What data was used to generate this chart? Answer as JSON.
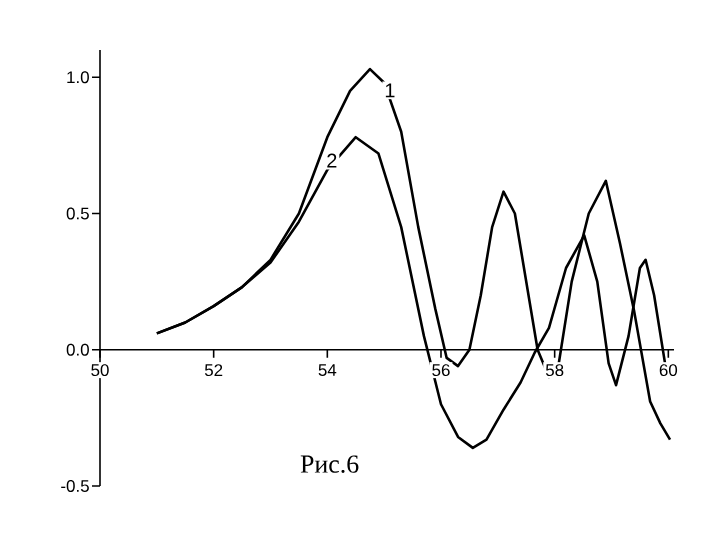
{
  "chart_data": {
    "type": "line",
    "annotations": [
      "Рис.6"
    ],
    "xlim": [
      50,
      60.1
    ],
    "ylim": [
      -0.5,
      1.1
    ],
    "xticks": [
      50,
      52,
      54,
      56,
      58,
      60
    ],
    "yticks": [
      {
        "value": -0.5,
        "label": "-0.5"
      },
      {
        "value": 0,
        "label": "0.0"
      },
      {
        "value": 0.5,
        "label": "0.5"
      },
      {
        "value": 1,
        "label": "1.0"
      }
    ],
    "grid": false,
    "legend": false,
    "marker": "none",
    "line_style": "solid",
    "series": [
      {
        "name": "1",
        "color": "#000000",
        "x": [
          51,
          51.5,
          52,
          52.5,
          53,
          53.5,
          54,
          54.4,
          54.75,
          55.0,
          55.3,
          55.6,
          55.9,
          56.1,
          56.3,
          56.5,
          56.7,
          56.9,
          57.1,
          57.3,
          57.5,
          57.7,
          57.9,
          58.05,
          58.3,
          58.6,
          58.9,
          59.15,
          59.4,
          59.68,
          59.86,
          60.03
        ],
        "values": [
          0.06,
          0.1,
          0.16,
          0.23,
          0.33,
          0.5,
          0.78,
          0.95,
          1.03,
          0.98,
          0.8,
          0.45,
          0.15,
          -0.03,
          -0.06,
          0.0,
          0.2,
          0.45,
          0.58,
          0.5,
          0.25,
          0.0,
          -0.1,
          -0.08,
          0.25,
          0.5,
          0.62,
          0.39,
          0.14,
          -0.19,
          -0.27,
          -0.33
        ]
      },
      {
        "name": "2",
        "color": "#000000",
        "x": [
          51,
          51.5,
          52,
          52.5,
          53,
          53.5,
          54,
          54.5,
          54.9,
          55.3,
          55.7,
          56.0,
          56.3,
          56.56,
          56.8,
          57.1,
          57.4,
          57.65,
          57.9,
          58.2,
          58.52,
          58.75,
          58.95,
          59.08,
          59.3,
          59.5,
          59.6,
          59.75,
          59.95
        ],
        "values": [
          0.06,
          0.1,
          0.16,
          0.23,
          0.32,
          0.47,
          0.66,
          0.78,
          0.72,
          0.45,
          0.05,
          -0.2,
          -0.32,
          -0.36,
          -0.33,
          -0.22,
          -0.12,
          -0.01,
          0.08,
          0.3,
          0.42,
          0.25,
          -0.05,
          -0.13,
          0.05,
          0.3,
          0.33,
          0.2,
          -0.06
        ]
      }
    ]
  }
}
